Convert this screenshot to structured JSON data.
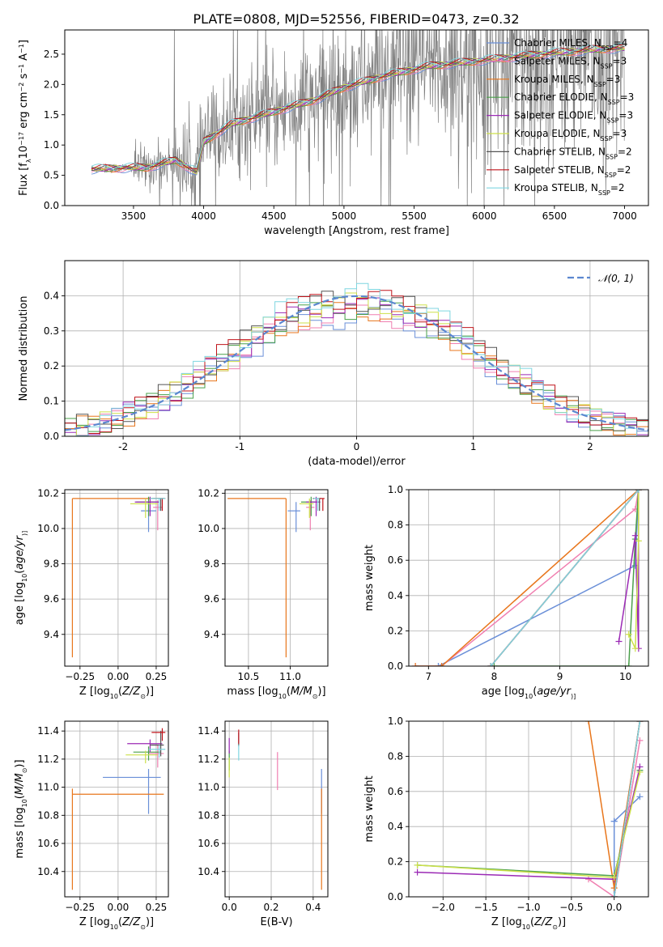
{
  "figure": {
    "title": "PLATE=0808, MJD=52556, FIBERID=0473, z=0.32"
  },
  "series_styles": [
    {
      "name": "Chabrier MILES",
      "legend": "Chabrier MILES, N",
      "nssp": "=4",
      "color": "#6a8fd8"
    },
    {
      "name": "Salpeter MILES",
      "legend": "Salpeter MILES, N",
      "nssp": "=3",
      "color": "#f07fb0"
    },
    {
      "name": "Kroupa MILES",
      "legend": "Kroupa MILES, N",
      "nssp": "=3",
      "color": "#e8761c"
    },
    {
      "name": "Chabrier ELODIE",
      "legend": "Chabrier ELODIE, N",
      "nssp": "=3",
      "color": "#4aa04a"
    },
    {
      "name": "Salpeter ELODIE",
      "legend": "Salpeter ELODIE, N",
      "nssp": "=3",
      "color": "#9b2ab5"
    },
    {
      "name": "Kroupa ELODIE",
      "legend": "Kroupa ELODIE, N",
      "nssp": "=3",
      "color": "#cde04a"
    },
    {
      "name": "Chabrier STELIB",
      "legend": "Chabrier STELIB, N",
      "nssp": "=2",
      "color": "#555555"
    },
    {
      "name": "Salpeter STELIB",
      "legend": "Salpeter STELIB, N",
      "nssp": "=2",
      "color": "#c0141b"
    },
    {
      "name": "Kroupa STELIB",
      "legend": "Kroupa STELIB, N",
      "nssp": "=2",
      "color": "#7fd6e0"
    }
  ],
  "chart_data": [
    {
      "id": "spectrum",
      "type": "line",
      "xlabel": "wavelength [Angstrom, rest frame]",
      "ylabel_parts": [
        "Flux [f",
        "λ",
        "10",
        "−17",
        " erg cm",
        "−2",
        " s",
        "−1",
        " A",
        "−1",
        "]"
      ],
      "xlim": [
        3010,
        7170
      ],
      "ylim": [
        0.0,
        2.9
      ],
      "xticks": [
        3500,
        4000,
        4500,
        5000,
        5500,
        6000,
        6500,
        7000
      ],
      "yticks": [
        0.0,
        0.5,
        1.0,
        1.5,
        2.0,
        2.5
      ],
      "legend_position": "top-right",
      "legend_subscript": "SSP",
      "data_color": "#808080",
      "data": {
        "wavelength_range": [
          3200,
          7000
        ],
        "continuum": [
          [
            3200,
            0.6
          ],
          [
            3400,
            0.62
          ],
          [
            3600,
            0.63
          ],
          [
            3800,
            0.75
          ],
          [
            3950,
            0.55
          ],
          [
            4000,
            1.05
          ],
          [
            4200,
            1.35
          ],
          [
            4500,
            1.55
          ],
          [
            4800,
            1.75
          ],
          [
            5000,
            1.95
          ],
          [
            5300,
            2.15
          ],
          [
            5600,
            2.3
          ],
          [
            6000,
            2.4
          ],
          [
            6400,
            2.5
          ],
          [
            6800,
            2.58
          ],
          [
            7000,
            2.6
          ]
        ]
      },
      "model_note": "models follow continuum"
    },
    {
      "id": "residuals",
      "type": "histogram",
      "xlabel": "(data-model)/error",
      "ylabel": "Normed distribution",
      "xlim": [
        -2.5,
        2.5
      ],
      "ylim": [
        0.0,
        0.5
      ],
      "xticks": [
        -2,
        -1,
        0,
        1,
        2
      ],
      "yticks": [
        0.0,
        0.1,
        0.2,
        0.3,
        0.4
      ],
      "grid": true,
      "legend": "𝒩(0, 1)",
      "legend_position": "top-right",
      "gaussian": {
        "mean": 0,
        "sigma": 1,
        "color": "#5b87d0"
      },
      "bin_width": 0.1
    },
    {
      "id": "age-vs-Z",
      "type": "scatter",
      "xlabel_parts": [
        "Z [log",
        "10",
        "(",
        "Z/Z",
        "⊙",
        ")]"
      ],
      "ylabel_parts": [
        "age  [log",
        "10",
        "(",
        "age/yr",
        ")]"
      ],
      "xlim": [
        -0.35,
        0.33
      ],
      "ylim": [
        9.22,
        10.22
      ],
      "xticks": [
        -0.25,
        0.0,
        0.25
      ],
      "xtick_labels": [
        "−0.25",
        "0.00",
        "0.25"
      ],
      "yticks": [
        9.4,
        9.6,
        9.8,
        10.0,
        10.2
      ],
      "grid": true,
      "points": [
        {
          "series": "Chabrier MILES",
          "x": 0.2,
          "y": 10.1,
          "xerr": [
            0.05,
            0.05
          ],
          "yerr": [
            0.12,
            0.05
          ]
        },
        {
          "series": "Salpeter MILES",
          "x": 0.26,
          "y": 10.12,
          "xerr": [
            0.03,
            0.03
          ],
          "yerr": [
            0.13,
            0.04
          ]
        },
        {
          "series": "Kroupa MILES",
          "x": -0.3,
          "y": 10.17,
          "xerr": [
            0.0,
            0.6
          ],
          "yerr": [
            0.9,
            0.0
          ]
        },
        {
          "series": "Chabrier ELODIE",
          "x": 0.2,
          "y": 10.15,
          "xerr": [
            0.08,
            0.06
          ],
          "yerr": [
            0.08,
            0.03
          ]
        },
        {
          "series": "Salpeter ELODIE",
          "x": 0.21,
          "y": 10.15,
          "xerr": [
            0.1,
            0.06
          ],
          "yerr": [
            0.08,
            0.03
          ]
        },
        {
          "series": "Kroupa ELODIE",
          "x": 0.18,
          "y": 10.14,
          "xerr": [
            0.1,
            0.08
          ],
          "yerr": [
            0.08,
            0.03
          ]
        },
        {
          "series": "Chabrier STELIB",
          "x": 0.28,
          "y": 10.17,
          "xerr": [
            0.06,
            0.02
          ],
          "yerr": [
            0.07,
            0.0
          ]
        },
        {
          "series": "Salpeter STELIB",
          "x": 0.29,
          "y": 10.17,
          "xerr": [
            0.06,
            0.02
          ],
          "yerr": [
            0.07,
            0.0
          ]
        },
        {
          "series": "Kroupa STELIB",
          "x": 0.27,
          "y": 10.17,
          "xerr": [
            0.06,
            0.04
          ],
          "yerr": [
            0.07,
            0.0
          ]
        }
      ]
    },
    {
      "id": "age-vs-mass",
      "type": "scatter",
      "xlabel_parts": [
        "mass [log",
        "10",
        "(",
        "M/M",
        "⊙",
        ")]"
      ],
      "ylabel_parts": [],
      "xlim": [
        10.22,
        11.45
      ],
      "ylim": [
        9.22,
        10.22
      ],
      "xticks": [
        10.5,
        11.0
      ],
      "xtick_labels": [
        "10.5",
        "11.0"
      ],
      "yticks": [
        9.4,
        9.6,
        9.8,
        10.0,
        10.2
      ],
      "grid": true,
      "points": [
        {
          "series": "Chabrier MILES",
          "x": 11.07,
          "y": 10.1,
          "xerr": [
            0.1,
            0.05
          ],
          "yerr": [
            0.12,
            0.05
          ]
        },
        {
          "series": "Salpeter MILES",
          "x": 11.24,
          "y": 10.12,
          "xerr": [
            0.05,
            0.05
          ],
          "yerr": [
            0.13,
            0.04
          ]
        },
        {
          "series": "Kroupa MILES",
          "x": 10.95,
          "y": 10.17,
          "xerr": [
            0.7,
            0.0
          ],
          "yerr": [
            0.9,
            0.0
          ]
        },
        {
          "series": "Chabrier ELODIE",
          "x": 11.25,
          "y": 10.15,
          "xerr": [
            0.12,
            0.05
          ],
          "yerr": [
            0.08,
            0.03
          ]
        },
        {
          "series": "Salpeter ELODIE",
          "x": 11.31,
          "y": 10.15,
          "xerr": [
            0.12,
            0.05
          ],
          "yerr": [
            0.08,
            0.03
          ]
        },
        {
          "series": "Kroupa ELODIE",
          "x": 11.23,
          "y": 10.14,
          "xerr": [
            0.12,
            0.05
          ],
          "yerr": [
            0.08,
            0.03
          ]
        },
        {
          "series": "Chabrier STELIB",
          "x": 11.35,
          "y": 10.17,
          "xerr": [
            0.08,
            0.02
          ],
          "yerr": [
            0.07,
            0.0
          ]
        },
        {
          "series": "Salpeter STELIB",
          "x": 11.39,
          "y": 10.17,
          "xerr": [
            0.05,
            0.02
          ],
          "yerr": [
            0.07,
            0.0
          ]
        },
        {
          "series": "Kroupa STELIB",
          "x": 11.33,
          "y": 10.17,
          "xerr": [
            0.05,
            0.02
          ],
          "yerr": [
            0.07,
            0.0
          ]
        }
      ]
    },
    {
      "id": "massweight-vs-age",
      "type": "line",
      "xlabel_parts": [
        "age  [log",
        "10",
        "(",
        "age/yr",
        ")]"
      ],
      "ylabel": "mass weight",
      "xlim": [
        6.7,
        10.35
      ],
      "ylim": [
        0.0,
        1.0
      ],
      "xticks": [
        7,
        8,
        9,
        10
      ],
      "yticks": [
        0.0,
        0.2,
        0.4,
        0.6,
        0.8,
        1.0
      ],
      "grid": true,
      "series": [
        {
          "name": "Chabrier MILES",
          "x": [
            7.15,
            7.15,
            10.15,
            10.2
          ],
          "y": [
            0.0,
            0.0,
            0.57,
            1.0
          ]
        },
        {
          "name": "Salpeter MILES",
          "x": [
            6.8,
            7.2,
            10.15,
            10.2
          ],
          "y": [
            0.0,
            0.0,
            0.89,
            1.0
          ]
        },
        {
          "name": "Kroupa MILES",
          "x": [
            6.8,
            7.2,
            10.2
          ],
          "y": [
            0.0,
            0.0,
            1.0
          ]
        },
        {
          "name": "Chabrier ELODIE",
          "x": [
            8.0,
            10.05,
            10.15,
            10.2
          ],
          "y": [
            0.0,
            0.0,
            0.72,
            1.0
          ]
        },
        {
          "name": "Salpeter ELODIE",
          "x": [
            9.9,
            10.15,
            10.2,
            10.2
          ],
          "y": [
            0.14,
            0.74,
            0.1,
            1.0
          ]
        },
        {
          "name": "Kroupa ELODIE",
          "x": [
            10.05,
            10.15,
            10.2,
            10.2
          ],
          "y": [
            0.18,
            0.1,
            0.71,
            1.0
          ]
        },
        {
          "name": "Chabrier STELIB",
          "x": [
            7.95,
            10.2
          ],
          "y": [
            0.0,
            1.0
          ]
        },
        {
          "name": "Salpeter STELIB",
          "x": [
            7.95,
            10.2
          ],
          "y": [
            0.0,
            1.0
          ]
        },
        {
          "name": "Kroupa STELIB",
          "x": [
            7.95,
            10.2
          ],
          "y": [
            0.0,
            1.0
          ]
        }
      ]
    },
    {
      "id": "mass-vs-Z",
      "type": "scatter",
      "xlabel_parts": [
        "Z [log",
        "10",
        "(",
        "Z/Z",
        "⊙",
        ")]"
      ],
      "ylabel_parts": [
        "mass [log",
        "10",
        "(",
        "M/M",
        "⊙",
        ")]"
      ],
      "xlim": [
        -0.35,
        0.33
      ],
      "ylim": [
        10.22,
        11.47
      ],
      "xticks": [
        -0.25,
        0.0,
        0.25
      ],
      "xtick_labels": [
        "−0.25",
        "0.00",
        "0.25"
      ],
      "yticks": [
        10.4,
        10.6,
        10.8,
        11.0,
        11.2,
        11.4
      ],
      "grid": true,
      "points": [
        {
          "series": "Chabrier MILES",
          "x": 0.2,
          "y": 11.07,
          "xerr": [
            0.3,
            0.08
          ],
          "yerr": [
            0.26,
            0.06
          ]
        },
        {
          "series": "Salpeter MILES",
          "x": 0.26,
          "y": 11.24,
          "xerr": [
            0.06,
            0.04
          ],
          "yerr": [
            0.1,
            0.06
          ]
        },
        {
          "series": "Kroupa MILES",
          "x": -0.3,
          "y": 10.95,
          "xerr": [
            0.0,
            0.6
          ],
          "yerr": [
            0.68,
            0.04
          ]
        },
        {
          "series": "Chabrier ELODIE",
          "x": 0.2,
          "y": 11.25,
          "xerr": [
            0.1,
            0.08
          ],
          "yerr": [
            0.06,
            0.04
          ]
        },
        {
          "series": "Salpeter ELODIE",
          "x": 0.21,
          "y": 11.31,
          "xerr": [
            0.15,
            0.08
          ],
          "yerr": [
            0.06,
            0.03
          ]
        },
        {
          "series": "Kroupa ELODIE",
          "x": 0.18,
          "y": 11.23,
          "xerr": [
            0.13,
            0.08
          ],
          "yerr": [
            0.06,
            0.03
          ]
        },
        {
          "series": "Chabrier STELIB",
          "x": 0.28,
          "y": 11.3,
          "xerr": [
            0.07,
            0.02
          ],
          "yerr": [
            0.08,
            0.1
          ]
        },
        {
          "series": "Salpeter STELIB",
          "x": 0.29,
          "y": 11.39,
          "xerr": [
            0.07,
            0.02
          ],
          "yerr": [
            0.06,
            0.03
          ]
        },
        {
          "series": "Kroupa STELIB",
          "x": 0.27,
          "y": 11.27,
          "xerr": [
            0.07,
            0.04
          ],
          "yerr": [
            0.06,
            0.03
          ]
        }
      ]
    },
    {
      "id": "mass-vs-EBV",
      "type": "scatter",
      "xlabel": "E(B-V)",
      "ylabel_parts": [],
      "xlim": [
        -0.02,
        0.47
      ],
      "ylim": [
        10.22,
        11.47
      ],
      "xticks": [
        0.0,
        0.2,
        0.4
      ],
      "xtick_labels": [
        "0.0",
        "0.2",
        "0.4"
      ],
      "yticks": [
        10.4,
        10.6,
        10.8,
        11.0,
        11.2,
        11.4
      ],
      "grid": true,
      "points": [
        {
          "series": "Chabrier MILES",
          "x": 0.44,
          "y": 11.07,
          "xerr": [
            0,
            0
          ],
          "yerr": [
            0.26,
            0.06
          ]
        },
        {
          "series": "Salpeter MILES",
          "x": 0.23,
          "y": 11.15,
          "xerr": [
            0,
            0
          ],
          "yerr": [
            0.17,
            0.1
          ]
        },
        {
          "series": "Kroupa MILES",
          "x": 0.44,
          "y": 10.95,
          "xerr": [
            0,
            0
          ],
          "yerr": [
            0.68,
            0.04
          ]
        },
        {
          "series": "Chabrier ELODIE",
          "x": 0.0,
          "y": 11.2,
          "xerr": [
            0,
            0
          ],
          "yerr": [
            0.08,
            0.06
          ]
        },
        {
          "series": "Salpeter ELODIE",
          "x": 0.0,
          "y": 11.3,
          "xerr": [
            0,
            0
          ],
          "yerr": [
            0.06,
            0.05
          ]
        },
        {
          "series": "Kroupa ELODIE",
          "x": 0.0,
          "y": 11.15,
          "xerr": [
            0,
            0
          ],
          "yerr": [
            0.08,
            0.06
          ]
        },
        {
          "series": "Chabrier STELIB",
          "x": 0.045,
          "y": 11.34,
          "xerr": [
            0,
            0
          ],
          "yerr": [
            0.05,
            0.05
          ]
        },
        {
          "series": "Salpeter STELIB",
          "x": 0.045,
          "y": 11.36,
          "xerr": [
            0,
            0
          ],
          "yerr": [
            0.05,
            0.05
          ]
        },
        {
          "series": "Kroupa STELIB",
          "x": 0.045,
          "y": 11.25,
          "xerr": [
            0,
            0
          ],
          "yerr": [
            0.06,
            0.05
          ]
        }
      ]
    },
    {
      "id": "massweight-vs-Z",
      "type": "line",
      "xlabel_parts": [
        "Z [log",
        "10",
        "(",
        "Z/Z",
        "⊙",
        ")]"
      ],
      "ylabel": "mass weight",
      "xlim": [
        -2.4,
        0.4
      ],
      "ylim": [
        0.0,
        1.0
      ],
      "xticks": [
        -2.0,
        -1.5,
        -1.0,
        -0.5,
        0.0
      ],
      "xtick_labels": [
        "−2.0",
        "−1.5",
        "−1.0",
        "−0.5",
        "0.0"
      ],
      "yticks": [
        0.0,
        0.2,
        0.4,
        0.6,
        0.8,
        1.0
      ],
      "grid": true,
      "series": [
        {
          "name": "Chabrier MILES",
          "x": [
            0.0,
            0.0,
            0.0,
            0.3
          ],
          "y": [
            0.0,
            0.43,
            0.43,
            0.57
          ]
        },
        {
          "name": "Salpeter MILES",
          "x": [
            -0.3,
            0.0,
            0.3
          ],
          "y": [
            0.1,
            0.0,
            0.89
          ]
        },
        {
          "name": "Kroupa MILES",
          "x": [
            -0.3,
            0.0,
            0.3
          ],
          "y": [
            1.0,
            0.05,
            1.0
          ]
        },
        {
          "name": "Chabrier ELODIE",
          "x": [
            -2.3,
            0.0,
            0.3
          ],
          "y": [
            0.18,
            0.12,
            0.72
          ]
        },
        {
          "name": "Salpeter ELODIE",
          "x": [
            -2.3,
            0.0,
            0.3
          ],
          "y": [
            0.14,
            0.1,
            0.74
          ]
        },
        {
          "name": "Kroupa ELODIE",
          "x": [
            -2.3,
            0.0,
            0.3
          ],
          "y": [
            0.18,
            0.11,
            0.71
          ]
        },
        {
          "name": "Chabrier STELIB",
          "x": [
            0.0,
            0.3
          ],
          "y": [
            0.0,
            1.0
          ]
        },
        {
          "name": "Salpeter STELIB",
          "x": [
            0.0,
            0.3
          ],
          "y": [
            0.0,
            1.0
          ]
        },
        {
          "name": "Kroupa STELIB",
          "x": [
            0.0,
            0.3
          ],
          "y": [
            0.0,
            1.0
          ]
        }
      ]
    }
  ]
}
